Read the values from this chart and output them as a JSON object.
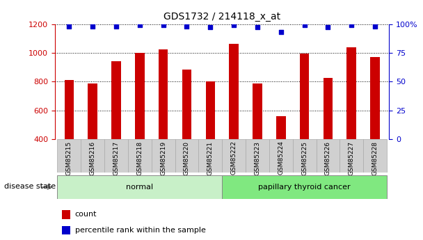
{
  "title": "GDS1732 / 214118_x_at",
  "samples": [
    "GSM85215",
    "GSM85216",
    "GSM85217",
    "GSM85218",
    "GSM85219",
    "GSM85220",
    "GSM85221",
    "GSM85222",
    "GSM85223",
    "GSM85224",
    "GSM85225",
    "GSM85226",
    "GSM85227",
    "GSM85228"
  ],
  "counts": [
    810,
    785,
    940,
    1000,
    1025,
    885,
    800,
    1060,
    785,
    558,
    995,
    825,
    1040,
    970
  ],
  "percentile_ranks": [
    98,
    98,
    98,
    99,
    99,
    98,
    97,
    99,
    97,
    93,
    99,
    97,
    99,
    98
  ],
  "ylim_left": [
    400,
    1200
  ],
  "ylim_right": [
    0,
    100
  ],
  "yticks_left": [
    400,
    600,
    800,
    1000,
    1200
  ],
  "yticks_right": [
    0,
    25,
    50,
    75,
    100
  ],
  "ytick_right_labels": [
    "0",
    "25",
    "50",
    "75",
    "100%"
  ],
  "groups": [
    {
      "label": "normal",
      "start": 0,
      "end": 7,
      "color": "#c8f0c8"
    },
    {
      "label": "papillary thyroid cancer",
      "start": 7,
      "end": 14,
      "color": "#80e880"
    }
  ],
  "bar_color": "#cc0000",
  "dot_color": "#0000cc",
  "background_color": "#ffffff",
  "label_color_left": "#cc0000",
  "label_color_right": "#0000cc",
  "xticklabel_bg_color": "#d0d0d0",
  "xticklabel_border_color": "#aaaaaa",
  "disease_state_label": "disease state",
  "legend_count_label": "count",
  "legend_percentile_label": "percentile rank within the sample",
  "bar_width": 0.4,
  "figsize": [
    6.08,
    3.45
  ],
  "dpi": 100
}
